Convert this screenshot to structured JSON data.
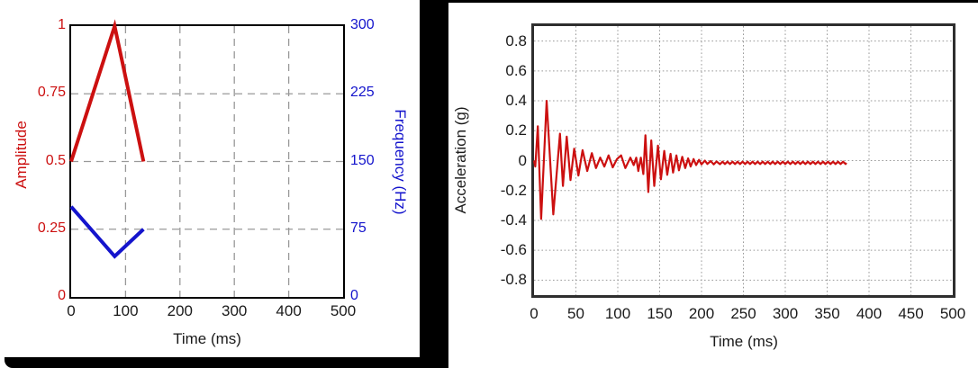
{
  "window": {
    "background_color": "#ffffff",
    "divider_color": "#000000"
  },
  "left_chart": {
    "x_label": "Time (ms)",
    "y_left_label": "Amplitude",
    "y_right_label": "Frequency (Hz)",
    "amplitude_color": "#cc1010",
    "frequency_color": "#1414cc",
    "tick_text_color": "#1a1a1a",
    "grid_color": "#999999",
    "frame_color": "#000000"
  },
  "right_chart": {
    "x_label": "Time (ms)",
    "y_label": "Acceleration (g)",
    "line_color": "#cc1010",
    "tick_text_color": "#1a1a1a",
    "grid_color": "#999999",
    "frame_color": "#2e2e2e"
  },
  "chart_data": [
    {
      "type": "line",
      "title": "",
      "xlabel": "Time (ms)",
      "ylabel_left": "Amplitude",
      "ylabel_right": "Frequency (Hz)",
      "xlim": [
        0,
        500
      ],
      "ylim_left": [
        0,
        1
      ],
      "ylim_right": [
        0,
        300
      ],
      "x_ticks": [
        0,
        100,
        200,
        300,
        400,
        500
      ],
      "y_left_ticks": [
        1,
        0.75,
        0.5,
        0.25,
        0
      ],
      "y_right_ticks": [
        300,
        225,
        150,
        75,
        0
      ],
      "grid": "dashed",
      "legend": "none",
      "series": [
        {
          "name": "Amplitude",
          "axis": "left",
          "color": "#cc1010",
          "points": [
            [
              0,
              0.5
            ],
            [
              80,
              1.0
            ],
            [
              133,
              0.5
            ]
          ]
        },
        {
          "name": "Frequency",
          "axis": "right",
          "color": "#1414cc",
          "points": [
            [
              0,
              100
            ],
            [
              80,
              45
            ],
            [
              133,
              75
            ]
          ]
        }
      ]
    },
    {
      "type": "line",
      "title": "",
      "xlabel": "Time (ms)",
      "ylabel": "Acceleration (g)",
      "xlim": [
        0,
        500
      ],
      "ylim": [
        -0.9,
        0.9
      ],
      "x_ticks": [
        0,
        50,
        100,
        150,
        200,
        250,
        300,
        350,
        400,
        450,
        500
      ],
      "y_ticks": [
        0.8,
        0.6,
        0.4,
        0.2,
        0,
        -0.2,
        -0.4,
        -0.6,
        -0.8
      ],
      "grid": "dotted",
      "legend": "none",
      "series": [
        {
          "name": "Acceleration",
          "color": "#cc1010",
          "points": [
            [
              0,
              0
            ],
            [
              1.5,
              -0.04
            ],
            [
              4.5,
              0.23
            ],
            [
              8.5,
              -0.39
            ],
            [
              15,
              0.4
            ],
            [
              23,
              -0.36
            ],
            [
              31,
              0.18
            ],
            [
              34.5,
              -0.17
            ],
            [
              39,
              0.16
            ],
            [
              43.5,
              -0.13
            ],
            [
              48,
              0.08
            ],
            [
              53,
              -0.1
            ],
            [
              58,
              0.07
            ],
            [
              63.5,
              -0.07
            ],
            [
              69,
              0.05
            ],
            [
              74,
              -0.05
            ],
            [
              79,
              0.02
            ],
            [
              84,
              -0.04
            ],
            [
              89,
              0.035
            ],
            [
              94,
              -0.045
            ],
            [
              99,
              0.01
            ],
            [
              104,
              0.035
            ],
            [
              109,
              -0.05
            ],
            [
              115,
              0.02
            ],
            [
              119,
              -0.03
            ],
            [
              122,
              0.02
            ],
            [
              124.5,
              -0.07
            ],
            [
              127.5,
              0.02
            ],
            [
              130.5,
              -0.09
            ],
            [
              133,
              0.17
            ],
            [
              136.5,
              -0.21
            ],
            [
              140,
              0.135
            ],
            [
              143.5,
              -0.17
            ],
            [
              148,
              0.1
            ],
            [
              151.5,
              -0.125
            ],
            [
              155.5,
              0.065
            ],
            [
              159,
              -0.095
            ],
            [
              163,
              0.045
            ],
            [
              166,
              -0.08
            ],
            [
              170,
              0.035
            ],
            [
              173,
              -0.065
            ],
            [
              177,
              0.025
            ],
            [
              180.5,
              -0.05
            ],
            [
              184,
              0.015
            ],
            [
              187,
              -0.04
            ],
            [
              190.5,
              0.01
            ],
            [
              193.5,
              -0.03
            ],
            [
              197,
              0.005
            ],
            [
              200,
              -0.025
            ],
            [
              204,
              0
            ],
            [
              207,
              -0.022
            ],
            [
              211,
              -0.003
            ],
            [
              214.5,
              -0.025
            ],
            [
              218,
              -0.006
            ],
            [
              222,
              -0.024
            ]
          ],
          "tail_ripple": {
            "from": 225,
            "to": 373,
            "baseline": -0.015,
            "amplitude": 0.008,
            "half_period": 3
          }
        }
      ]
    }
  ]
}
